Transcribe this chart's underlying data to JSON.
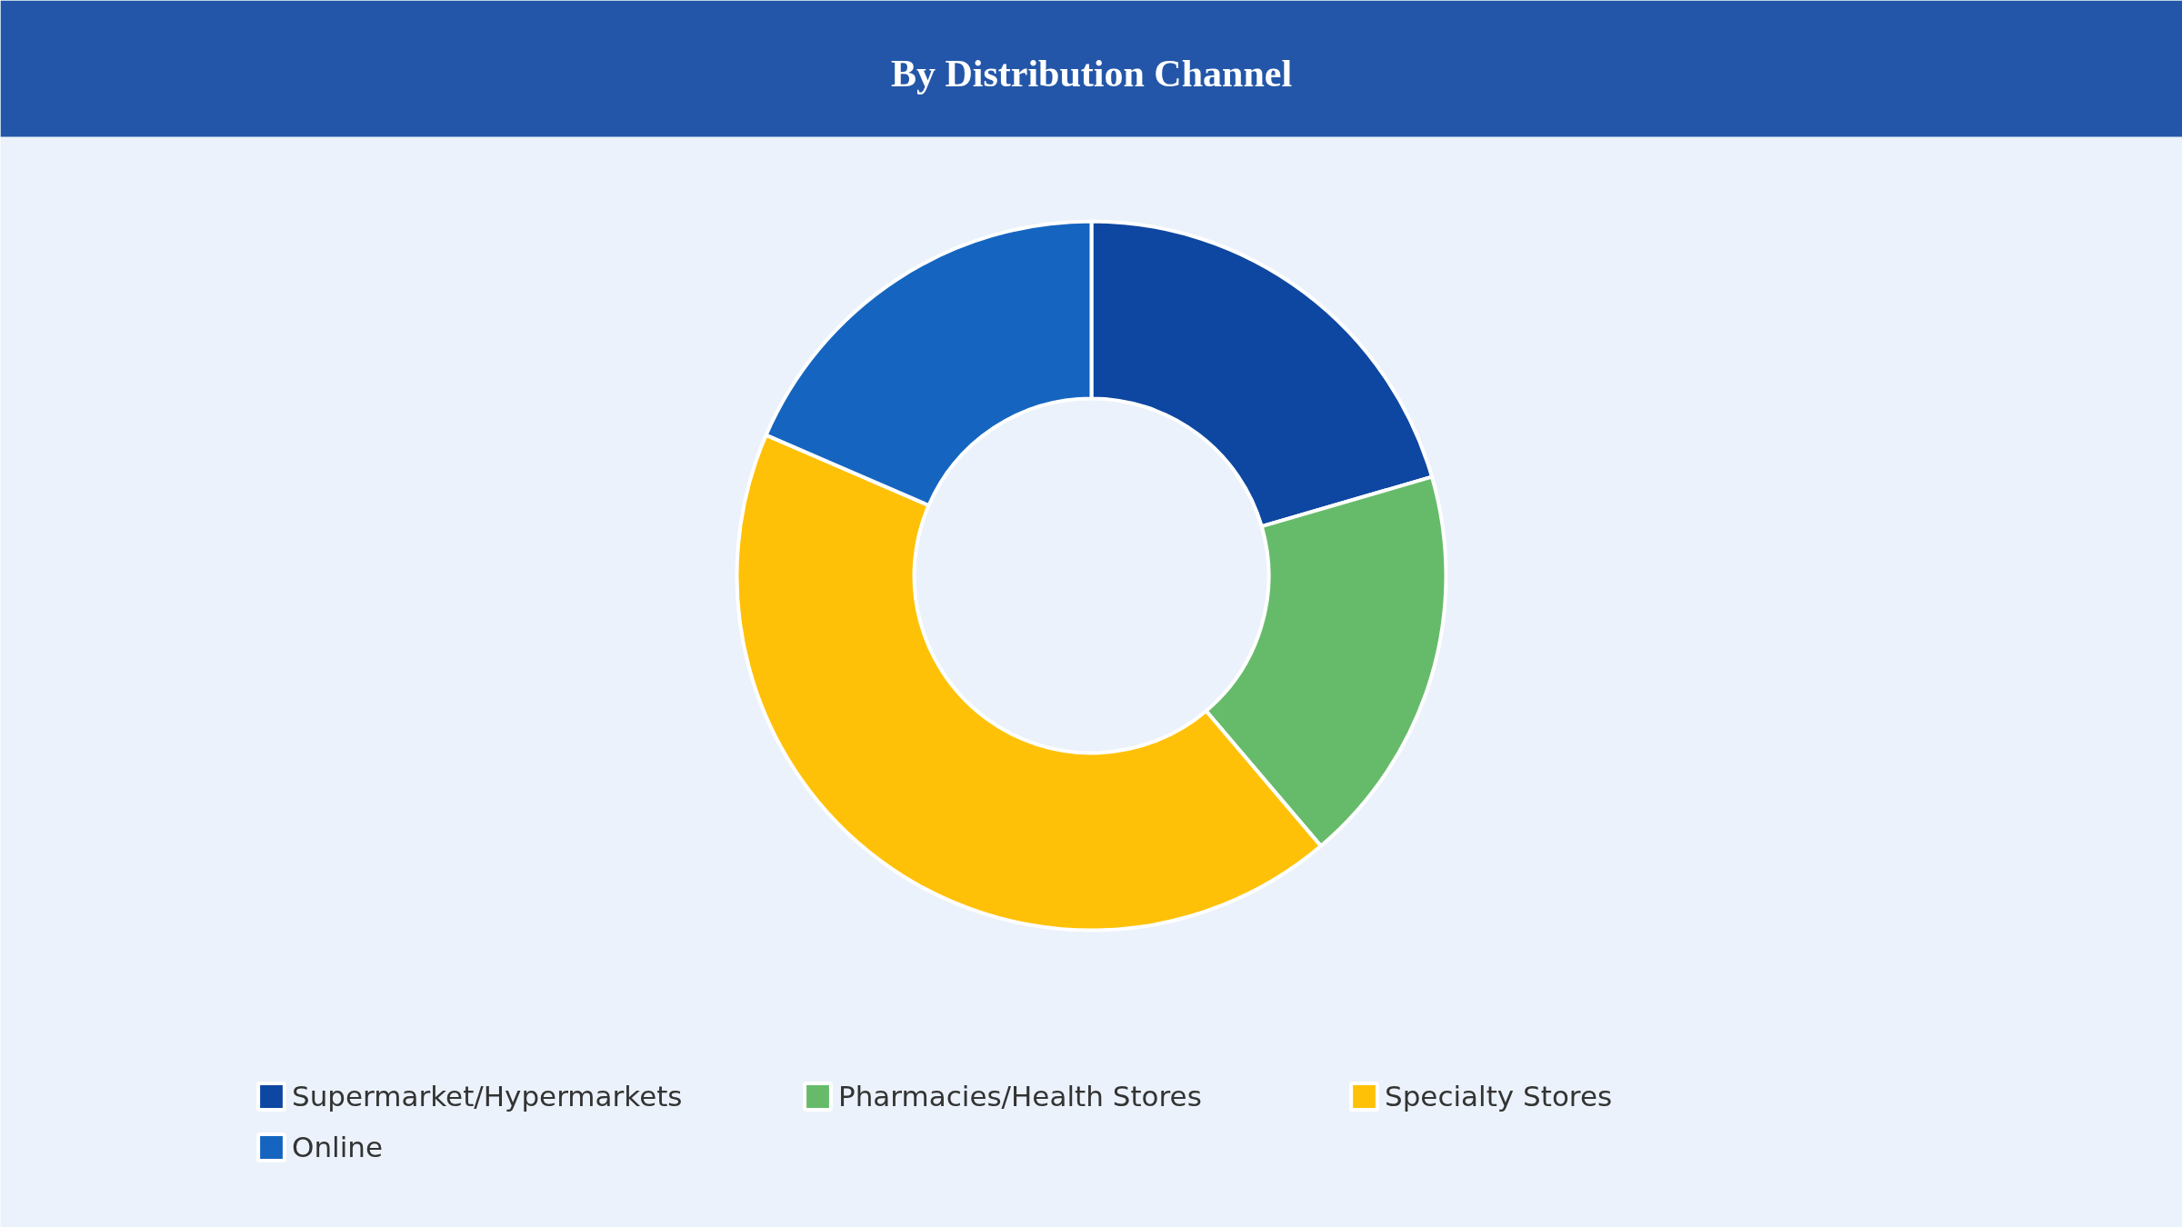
{
  "chart_data": {
    "type": "donut",
    "title": "By Distribution Channel",
    "categories": [
      "Supermarket/Hypermarkets",
      "Pharmacies/Health Stores",
      "Specialty Stores",
      "Online"
    ],
    "values": [
      20.5,
      18.3,
      42.7,
      18.5
    ],
    "colors": [
      "#0d47a1",
      "#66bb6a",
      "#ffc107",
      "#1565c0"
    ],
    "legend": "bottom"
  }
}
